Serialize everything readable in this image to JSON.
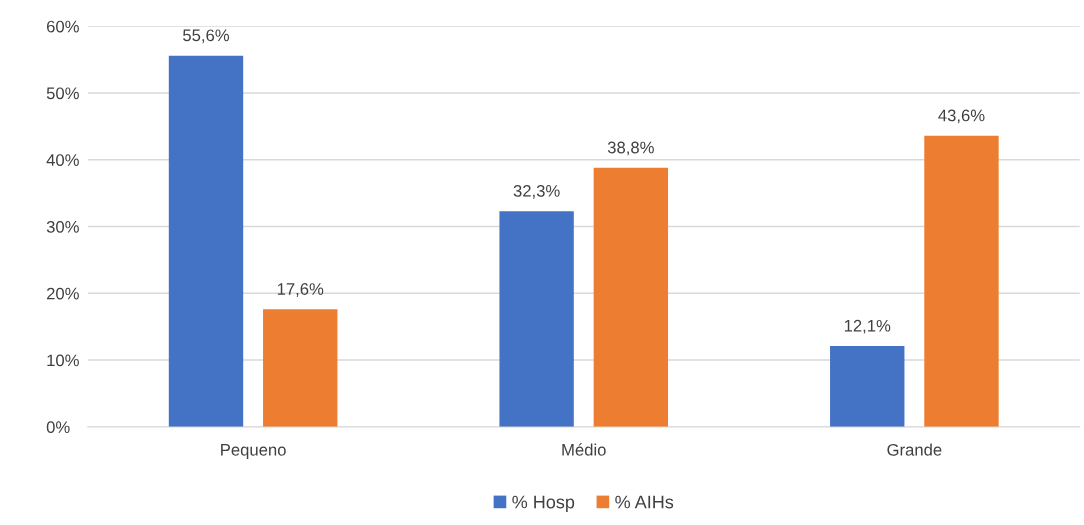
{
  "chart_data": {
    "type": "bar",
    "categories": [
      "Pequeno",
      "Médio",
      "Grande"
    ],
    "series": [
      {
        "name": "% Hosp",
        "color": "#4472c4",
        "values": [
          55.6,
          32.3,
          12.1
        ],
        "value_labels": [
          "55,6%",
          "32,3%",
          "12,1%"
        ]
      },
      {
        "name": "% AIHs",
        "color": "#ed7d31",
        "values": [
          17.6,
          38.8,
          43.6
        ],
        "value_labels": [
          "17,6%",
          "38,8%",
          "43,6%"
        ]
      }
    ],
    "ylim": [
      0,
      60
    ],
    "yticks": [
      {
        "value": 0,
        "label": "0%"
      },
      {
        "value": 10,
        "label": "10%"
      },
      {
        "value": 20,
        "label": "20%"
      },
      {
        "value": 30,
        "label": "30%"
      },
      {
        "value": 40,
        "label": "40%"
      },
      {
        "value": 50,
        "label": "50%"
      },
      {
        "value": 60,
        "label": "60%"
      }
    ],
    "grid": "y",
    "legend": "bottom"
  }
}
